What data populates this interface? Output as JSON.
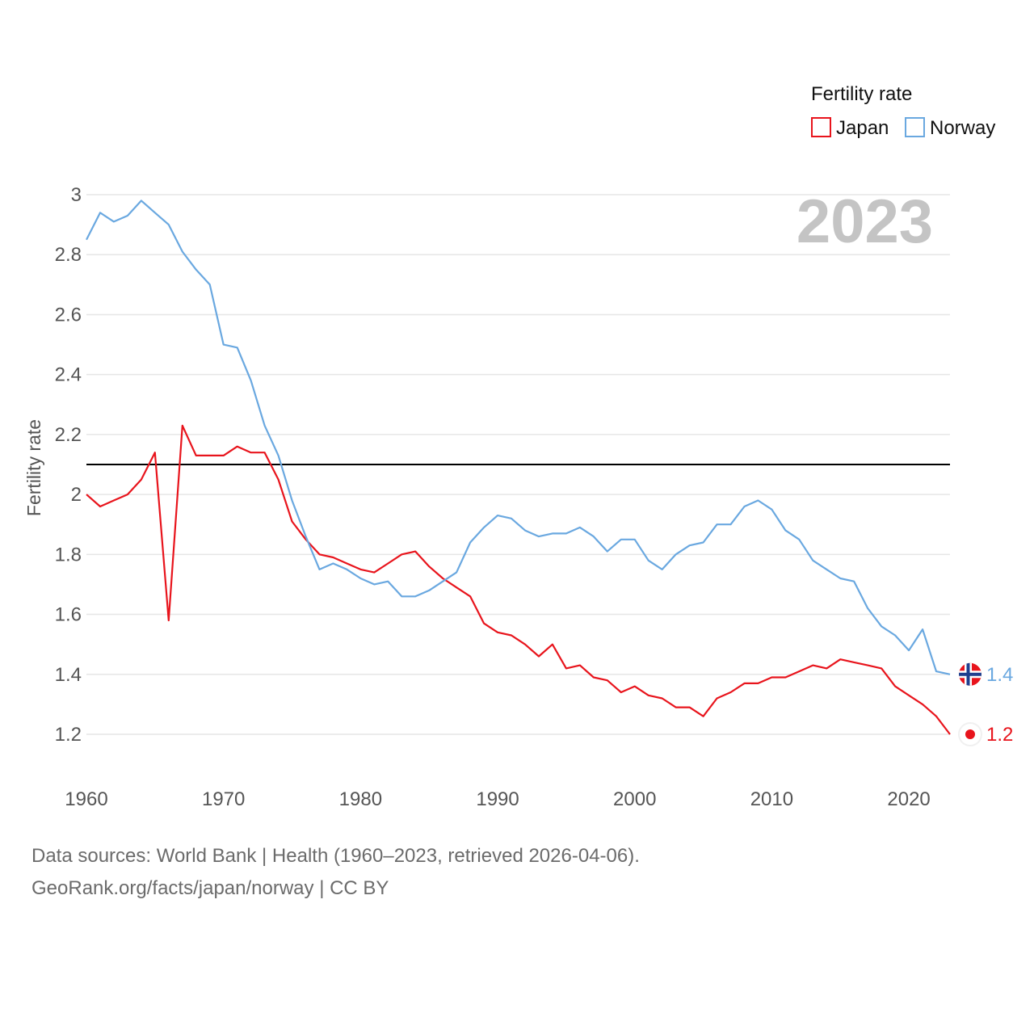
{
  "chart_data": {
    "type": "line",
    "title": "",
    "xlabel": "",
    "ylabel": "Fertility rate",
    "legend_title": "Fertility rate",
    "year_label": "2023",
    "xlim": [
      1960,
      2023
    ],
    "ylim": [
      1.1,
      3.0
    ],
    "x_ticks": [
      1960,
      1970,
      1980,
      1990,
      2000,
      2010,
      2020
    ],
    "y_ticks": [
      1.2,
      1.4,
      1.6,
      1.8,
      2,
      2.2,
      2.4,
      2.6,
      2.8,
      3
    ],
    "y_tick_labels": [
      "1.2",
      "1.4",
      "1.6",
      "1.8",
      "2",
      "2.2",
      "2.4",
      "2.6",
      "2.8",
      "3"
    ],
    "x_tick_labels": [
      "1960",
      "1970",
      "1980",
      "1990",
      "2000",
      "2010",
      "2020"
    ],
    "reference_line": 2.1,
    "x": [
      1960,
      1961,
      1962,
      1963,
      1964,
      1965,
      1966,
      1967,
      1968,
      1969,
      1970,
      1971,
      1972,
      1973,
      1974,
      1975,
      1976,
      1977,
      1978,
      1979,
      1980,
      1981,
      1982,
      1983,
      1984,
      1985,
      1986,
      1987,
      1988,
      1989,
      1990,
      1991,
      1992,
      1993,
      1994,
      1995,
      1996,
      1997,
      1998,
      1999,
      2000,
      2001,
      2002,
      2003,
      2004,
      2005,
      2006,
      2007,
      2008,
      2009,
      2010,
      2011,
      2012,
      2013,
      2014,
      2015,
      2016,
      2017,
      2018,
      2019,
      2020,
      2021,
      2022,
      2023
    ],
    "series": [
      {
        "name": "Japan",
        "color": "#e8141c",
        "end_label": "1.2",
        "values": [
          2.0,
          1.96,
          1.98,
          2.0,
          2.05,
          2.14,
          1.58,
          2.23,
          2.13,
          2.13,
          2.13,
          2.16,
          2.14,
          2.14,
          2.05,
          1.91,
          1.85,
          1.8,
          1.79,
          1.77,
          1.75,
          1.74,
          1.77,
          1.8,
          1.81,
          1.76,
          1.72,
          1.69,
          1.66,
          1.57,
          1.54,
          1.53,
          1.5,
          1.46,
          1.5,
          1.42,
          1.43,
          1.39,
          1.38,
          1.34,
          1.36,
          1.33,
          1.32,
          1.29,
          1.29,
          1.26,
          1.32,
          1.34,
          1.37,
          1.37,
          1.39,
          1.39,
          1.41,
          1.43,
          1.42,
          1.45,
          1.44,
          1.43,
          1.42,
          1.36,
          1.33,
          1.3,
          1.26,
          1.2
        ]
      },
      {
        "name": "Norway",
        "color": "#6aa8e0",
        "end_label": "1.4",
        "values": [
          2.85,
          2.94,
          2.91,
          2.93,
          2.98,
          2.94,
          2.9,
          2.81,
          2.75,
          2.7,
          2.5,
          2.49,
          2.38,
          2.23,
          2.13,
          1.98,
          1.86,
          1.75,
          1.77,
          1.75,
          1.72,
          1.7,
          1.71,
          1.66,
          1.66,
          1.68,
          1.71,
          1.74,
          1.84,
          1.89,
          1.93,
          1.92,
          1.88,
          1.86,
          1.87,
          1.87,
          1.89,
          1.86,
          1.81,
          1.85,
          1.85,
          1.78,
          1.75,
          1.8,
          1.83,
          1.84,
          1.9,
          1.9,
          1.96,
          1.98,
          1.95,
          1.88,
          1.85,
          1.78,
          1.75,
          1.72,
          1.71,
          1.62,
          1.56,
          1.53,
          1.48,
          1.55,
          1.41,
          1.4
        ]
      }
    ]
  },
  "footer": {
    "line1": "Data sources: World Bank | Health (1960–2023, retrieved 2026-04-06).",
    "line2": "GeoRank.org/facts/japan/norway | CC BY"
  },
  "flags": {
    "japan": {
      "field": "#ffffff",
      "disc": "#e8141c"
    },
    "norway": {
      "field": "#e8141c",
      "cross_outer": "#ffffff",
      "cross_inner": "#1f3f8f"
    }
  }
}
